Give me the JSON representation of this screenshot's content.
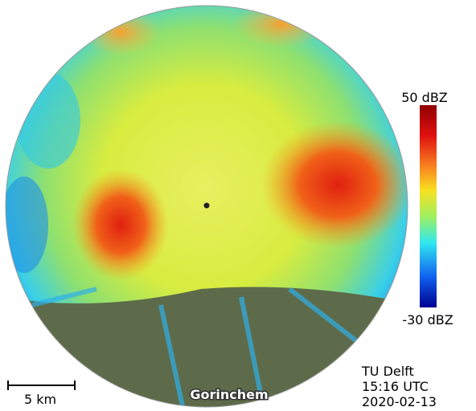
{
  "colorbar": {
    "max_label": "50 dBZ",
    "min_label": "-30 dBZ"
  },
  "scale_bar": {
    "label": "5 km"
  },
  "place_label": "Gorinchem",
  "info": {
    "source": "TU Delft",
    "time": "15:16 UTC",
    "date": "2020-02-13"
  }
}
